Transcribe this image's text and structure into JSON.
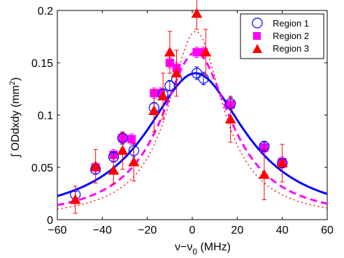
{
  "chart_data": {
    "type": "scatter",
    "title": "",
    "xlabel": {
      "main": "ν−ν",
      "sub": "0",
      "rest": " (MHz)"
    },
    "ylabel": {
      "main": "∫ ODdxdy (mm",
      "sup": "2",
      "rest": ")"
    },
    "xlim": [
      -60,
      60
    ],
    "ylim": [
      0,
      0.2
    ],
    "xticks": [
      -60,
      -40,
      -20,
      0,
      20,
      40,
      60
    ],
    "xtick_labels": [
      "−60",
      "−40",
      "−20",
      "0",
      "20",
      "40",
      "60"
    ],
    "yticks": [
      0,
      0.05,
      0.1,
      0.15,
      0.2
    ],
    "ytick_labels": [
      "0",
      "0.05",
      "0.1",
      "0.15",
      "0.2"
    ],
    "grid": false,
    "legend_position": "top-right",
    "colors": {
      "region1": "#0000ff",
      "region2": "#ff00ff",
      "region3": "#ff0000",
      "fit1": "#0000ff",
      "fit2": "#ff00ff",
      "fit3": "#ff0000"
    },
    "series": [
      {
        "name": "Region 1",
        "marker": "circle",
        "points": [
          {
            "x": -52,
            "y": 0.024,
            "err": 0.003
          },
          {
            "x": -43,
            "y": 0.048,
            "err": 0.004
          },
          {
            "x": -35,
            "y": 0.06,
            "err": 0.005
          },
          {
            "x": -31,
            "y": 0.078,
            "err": 0.006
          },
          {
            "x": -26,
            "y": 0.066,
            "err": 0.006
          },
          {
            "x": -17,
            "y": 0.107,
            "err": 0.005
          },
          {
            "x": -13,
            "y": 0.12,
            "err": 0.005
          },
          {
            "x": -10,
            "y": 0.128,
            "err": 0.005
          },
          {
            "x": -7,
            "y": 0.134,
            "err": 0.005
          },
          {
            "x": 2,
            "y": 0.14,
            "err": 0.006
          },
          {
            "x": 5,
            "y": 0.135,
            "err": 0.006
          },
          {
            "x": 17,
            "y": 0.111,
            "err": 0.006
          },
          {
            "x": 32,
            "y": 0.07,
            "err": 0.005
          },
          {
            "x": 40,
            "y": 0.054,
            "err": 0.004
          }
        ]
      },
      {
        "name": "Region 2",
        "marker": "square",
        "points": [
          {
            "x": -43,
            "y": 0.05,
            "err": 0.004
          },
          {
            "x": -35,
            "y": 0.062,
            "err": 0.005
          },
          {
            "x": -31,
            "y": 0.078,
            "err": 0.005
          },
          {
            "x": -27,
            "y": 0.077,
            "err": 0.005
          },
          {
            "x": -17,
            "y": 0.121,
            "err": 0.005
          },
          {
            "x": -14,
            "y": 0.121,
            "err": 0.005
          },
          {
            "x": -10,
            "y": 0.15,
            "err": 0.005
          },
          {
            "x": -7,
            "y": 0.145,
            "err": 0.005
          },
          {
            "x": 2,
            "y": 0.16,
            "err": 0.005
          },
          {
            "x": 5,
            "y": 0.16,
            "err": 0.005
          },
          {
            "x": 17,
            "y": 0.11,
            "err": 0.005
          },
          {
            "x": 32,
            "y": 0.069,
            "err": 0.005
          },
          {
            "x": 40,
            "y": 0.055,
            "err": 0.005
          }
        ]
      },
      {
        "name": "Region 3",
        "marker": "triangle",
        "points": [
          {
            "x": -52,
            "y": 0.019,
            "err": 0.013
          },
          {
            "x": -43,
            "y": 0.051,
            "err": 0.016
          },
          {
            "x": -35,
            "y": 0.047,
            "err": 0.013
          },
          {
            "x": -31,
            "y": 0.066,
            "err": 0.018
          },
          {
            "x": -26,
            "y": 0.055,
            "err": 0.018
          },
          {
            "x": -17,
            "y": 0.104,
            "err": 0.02
          },
          {
            "x": -13,
            "y": 0.118,
            "err": 0.022
          },
          {
            "x": -10,
            "y": 0.16,
            "err": 0.02
          },
          {
            "x": -7,
            "y": 0.14,
            "err": 0.022
          },
          {
            "x": 2,
            "y": 0.197,
            "err": 0.015
          },
          {
            "x": 6,
            "y": 0.16,
            "err": 0.022
          },
          {
            "x": 17,
            "y": 0.096,
            "err": 0.022
          },
          {
            "x": 32,
            "y": 0.043,
            "err": 0.024
          },
          {
            "x": 40,
            "y": 0.054,
            "err": 0.018
          }
        ]
      }
    ],
    "fits": [
      {
        "series": "Region 1",
        "style": "solid",
        "amplitude": 0.14,
        "center": 1.5,
        "hwhm": 27,
        "offset": 0
      },
      {
        "series": "Region 2",
        "style": "dashed",
        "amplitude": 0.16,
        "center": 1.5,
        "hwhm": 19,
        "offset": 0
      },
      {
        "series": "Region 3",
        "style": "dotted",
        "amplitude": 0.18,
        "center": 1.5,
        "hwhm": 15,
        "offset": 0
      }
    ]
  }
}
